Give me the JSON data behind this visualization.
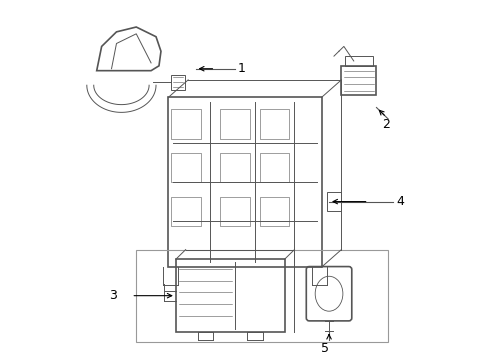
{
  "bg_color": "#ffffff",
  "line_color": "#555555",
  "label_color": "#000000",
  "arrow_color": "#000000",
  "figsize": [
    4.9,
    3.6
  ],
  "dpi": 100
}
